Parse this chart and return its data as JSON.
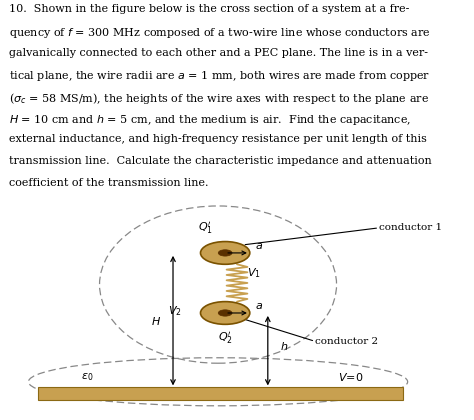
{
  "background_color": "#ffffff",
  "wire_fill": "#c8a050",
  "wire_edge": "#7a5200",
  "wire_inner_fill": "#5a3000",
  "pec_fill": "#c8a050",
  "pec_edge": "#8b6914",
  "fig_width": 4.74,
  "fig_height": 4.2,
  "dpi": 100,
  "text_lines": [
    "10.  Shown in the figure below is the cross section of a system at a fre-",
    "quency of $f$ = 300 MHz composed of a two-wire line whose conductors are",
    "galvanically connected to each other and a PEC plane. The line is in a ver-",
    "tical plane, the wire radii are $a$ = 1 mm, both wires are made from copper",
    "($\\sigma_c$ = 58 MS/m), the heights of the wire axes with respect to the plane are",
    "$H$ = 10 cm and $h$ = 5 cm, and the medium is air.  Find the capacitance,",
    "external inductance, and high-frequency resistance per unit length of this",
    "transmission line.  Calculate the characteristic impedance and attenuation",
    "coefficient of the transmission line."
  ],
  "text_fontsize": 8.0,
  "diagram_label_fontsize": 8.0,
  "small_label_fontsize": 7.5
}
